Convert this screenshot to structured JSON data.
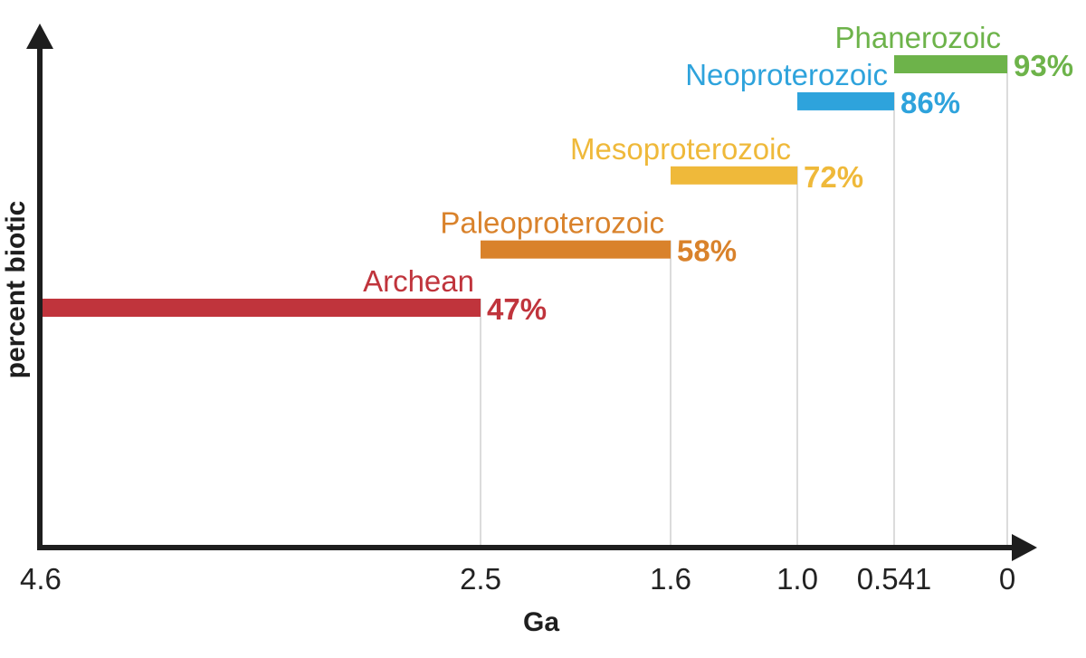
{
  "chart_data": {
    "type": "bar",
    "title": "",
    "xlabel": "Ga",
    "ylabel": "percent biotic",
    "x_ticks": [
      "4.6",
      "2.5",
      "1.6",
      "1.0",
      "0.541",
      "0"
    ],
    "xlim": [
      4.6,
      0
    ],
    "ylim": [
      0,
      100
    ],
    "grid": false,
    "legend": "none",
    "series": [
      {
        "name": "Archean",
        "start": 4.6,
        "end": 2.5,
        "value": 47,
        "label": "47%",
        "color": "#c0343c"
      },
      {
        "name": "Paleoproterozoic",
        "start": 2.5,
        "end": 1.6,
        "value": 58,
        "label": "58%",
        "color": "#d9822b"
      },
      {
        "name": "Mesoproterozoic",
        "start": 1.6,
        "end": 1.0,
        "value": 72,
        "label": "72%",
        "color": "#efb93a"
      },
      {
        "name": "Neoproterozoic",
        "start": 1.0,
        "end": 0.541,
        "value": 86,
        "label": "86%",
        "color": "#2ea3dc"
      },
      {
        "name": "Phanerozoic",
        "start": 0.541,
        "end": 0,
        "value": 93,
        "label": "93%",
        "color": "#6db34a"
      }
    ]
  }
}
